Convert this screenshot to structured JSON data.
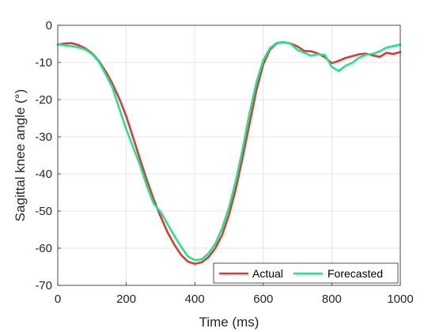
{
  "chart_data": {
    "type": "line",
    "title": "",
    "xlabel": "Time (ms)",
    "ylabel": "Sagittal knee angle (°)",
    "xlim": [
      0,
      1000
    ],
    "ylim": [
      -70,
      0
    ],
    "xticks": [
      0,
      200,
      400,
      600,
      800,
      1000
    ],
    "yticks": [
      0,
      -10,
      -20,
      -30,
      -40,
      -50,
      -60,
      -70
    ],
    "xtick_labels": [
      "0",
      "200",
      "400",
      "600",
      "800",
      "1000"
    ],
    "ytick_labels": [
      "0",
      "-10",
      "-20",
      "-30",
      "-40",
      "-50",
      "-60",
      "-70"
    ],
    "grid": true,
    "legend": {
      "placement": "bottom-right",
      "orientation": "horizontal"
    },
    "series": [
      {
        "name": "Actual",
        "color": "#d93a3a",
        "x": [
          0,
          20,
          40,
          60,
          80,
          100,
          120,
          140,
          160,
          180,
          200,
          220,
          240,
          260,
          280,
          300,
          320,
          340,
          360,
          380,
          400,
          420,
          440,
          460,
          480,
          500,
          520,
          540,
          560,
          580,
          600,
          620,
          640,
          660,
          680,
          700,
          720,
          740,
          760,
          780,
          800,
          820,
          840,
          860,
          880,
          900,
          920,
          940,
          960,
          980,
          1000
        ],
        "y": [
          -5.2,
          -4.9,
          -4.8,
          -5.3,
          -6.2,
          -7.5,
          -9.6,
          -12.4,
          -15.8,
          -19.8,
          -24.5,
          -30.2,
          -36.0,
          -41.6,
          -46.8,
          -51.4,
          -55.6,
          -59.0,
          -61.8,
          -63.6,
          -64.2,
          -63.8,
          -62.4,
          -60.0,
          -56.4,
          -51.0,
          -44.0,
          -35.5,
          -26.5,
          -17.5,
          -10.5,
          -6.5,
          -4.8,
          -4.6,
          -4.9,
          -5.7,
          -6.9,
          -7.0,
          -7.6,
          -8.6,
          -10.2,
          -9.6,
          -8.8,
          -8.3,
          -7.8,
          -7.6,
          -8.1,
          -8.5,
          -7.4,
          -7.7,
          -7.2
        ]
      },
      {
        "name": "Forecasted",
        "color": "#22e48b",
        "x": [
          0,
          20,
          40,
          60,
          80,
          100,
          120,
          140,
          160,
          180,
          200,
          220,
          240,
          260,
          280,
          300,
          320,
          340,
          360,
          380,
          400,
          420,
          440,
          460,
          480,
          500,
          520,
          540,
          560,
          580,
          600,
          620,
          640,
          660,
          680,
          700,
          720,
          740,
          760,
          780,
          800,
          820,
          840,
          860,
          880,
          900,
          920,
          940,
          960,
          980,
          1000
        ],
        "y": [
          -5.1,
          -5.4,
          -5.6,
          -5.9,
          -6.5,
          -7.7,
          -9.8,
          -13.2,
          -16.8,
          -22.5,
          -28.0,
          -32.8,
          -37.6,
          -43.2,
          -48.0,
          -50.2,
          -53.4,
          -56.6,
          -59.6,
          -62.2,
          -63.2,
          -63.0,
          -61.4,
          -58.8,
          -54.6,
          -49.0,
          -41.8,
          -33.2,
          -23.6,
          -15.4,
          -9.4,
          -6.1,
          -4.7,
          -4.5,
          -5.0,
          -6.6,
          -7.4,
          -8.2,
          -7.8,
          -8.0,
          -11.2,
          -12.3,
          -10.9,
          -10.1,
          -8.7,
          -7.9,
          -7.7,
          -7.0,
          -6.0,
          -5.6,
          -5.2
        ]
      }
    ]
  }
}
